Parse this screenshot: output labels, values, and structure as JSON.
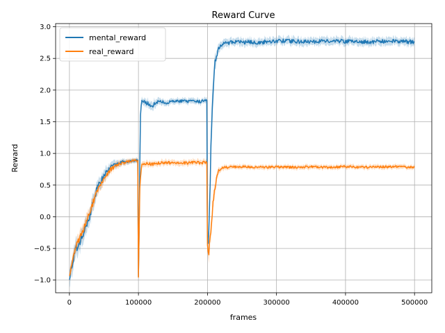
{
  "chart_data": {
    "type": "line",
    "title": "Reward Curve",
    "xlabel": "frames",
    "ylabel": "Reward",
    "xlim": [
      -20000,
      525000
    ],
    "ylim": [
      -1.2,
      3.05
    ],
    "xticks": [
      0,
      100000,
      200000,
      300000,
      400000,
      500000
    ],
    "yticks": [
      -1.0,
      -0.5,
      0.0,
      0.5,
      1.0,
      1.5,
      2.0,
      2.5,
      3.0
    ],
    "grid": true,
    "legend": "top-left",
    "series": [
      {
        "name": "mental_reward",
        "color": "#1f77b4",
        "band_color": "#1f77b4",
        "x": [
          0,
          5000,
          10000,
          20000,
          30000,
          40000,
          50000,
          60000,
          70000,
          80000,
          90000,
          99000,
          100000,
          101000,
          102000,
          103000,
          105000,
          110000,
          120000,
          130000,
          140000,
          150000,
          160000,
          170000,
          180000,
          190000,
          199000,
          200000,
          201000,
          203000,
          205000,
          207000,
          209000,
          211000,
          213000,
          216000,
          220000,
          230000,
          250000,
          275000,
          300000,
          325000,
          350000,
          375000,
          400000,
          425000,
          450000,
          475000,
          500000
        ],
        "y": [
          -0.95,
          -0.7,
          -0.5,
          -0.3,
          0.05,
          0.45,
          0.65,
          0.78,
          0.85,
          0.87,
          0.88,
          0.9,
          -0.95,
          -0.3,
          0.8,
          1.6,
          1.83,
          1.8,
          1.76,
          1.82,
          1.8,
          1.82,
          1.83,
          1.82,
          1.82,
          1.82,
          1.85,
          -0.3,
          -0.4,
          0.2,
          1.1,
          1.8,
          2.2,
          2.45,
          2.55,
          2.65,
          2.72,
          2.75,
          2.76,
          2.75,
          2.78,
          2.77,
          2.76,
          2.78,
          2.77,
          2.76,
          2.77,
          2.77,
          2.76
        ],
        "band": [
          0.12,
          0.15,
          0.15,
          0.15,
          0.15,
          0.12,
          0.1,
          0.08,
          0.06,
          0.05,
          0.04,
          0.04,
          0.05,
          0.2,
          0.25,
          0.15,
          0.06,
          0.07,
          0.08,
          0.06,
          0.05,
          0.05,
          0.05,
          0.05,
          0.05,
          0.05,
          0.05,
          0.1,
          0.2,
          0.3,
          0.35,
          0.3,
          0.25,
          0.15,
          0.1,
          0.08,
          0.07,
          0.07,
          0.07,
          0.07,
          0.07,
          0.07,
          0.07,
          0.07,
          0.07,
          0.07,
          0.07,
          0.07,
          0.07
        ]
      },
      {
        "name": "real_reward",
        "color": "#ff7f0e",
        "band_color": "#ff7f0e",
        "x": [
          0,
          5000,
          10000,
          20000,
          30000,
          40000,
          50000,
          60000,
          70000,
          80000,
          90000,
          99000,
          100000,
          101000,
          102000,
          105000,
          110000,
          120000,
          130000,
          140000,
          150000,
          160000,
          170000,
          180000,
          190000,
          199000,
          200000,
          202000,
          205000,
          208000,
          212000,
          216000,
          220000,
          230000,
          250000,
          275000,
          300000,
          325000,
          350000,
          375000,
          400000,
          425000,
          450000,
          475000,
          500000
        ],
        "y": [
          -0.95,
          -0.65,
          -0.45,
          -0.2,
          0.1,
          0.4,
          0.6,
          0.75,
          0.82,
          0.86,
          0.88,
          0.9,
          -0.95,
          -0.3,
          0.5,
          0.82,
          0.84,
          0.83,
          0.85,
          0.86,
          0.84,
          0.85,
          0.85,
          0.86,
          0.85,
          0.86,
          -0.45,
          -0.55,
          -0.2,
          0.2,
          0.55,
          0.72,
          0.77,
          0.78,
          0.79,
          0.78,
          0.79,
          0.78,
          0.79,
          0.78,
          0.79,
          0.78,
          0.79,
          0.79,
          0.78
        ],
        "band": [
          0.1,
          0.12,
          0.12,
          0.12,
          0.12,
          0.1,
          0.08,
          0.07,
          0.06,
          0.05,
          0.04,
          0.04,
          0.05,
          0.2,
          0.2,
          0.06,
          0.05,
          0.05,
          0.05,
          0.05,
          0.05,
          0.05,
          0.05,
          0.05,
          0.05,
          0.05,
          0.1,
          0.15,
          0.15,
          0.12,
          0.1,
          0.06,
          0.05,
          0.04,
          0.04,
          0.04,
          0.04,
          0.04,
          0.04,
          0.04,
          0.04,
          0.04,
          0.04,
          0.04,
          0.04
        ]
      }
    ]
  }
}
